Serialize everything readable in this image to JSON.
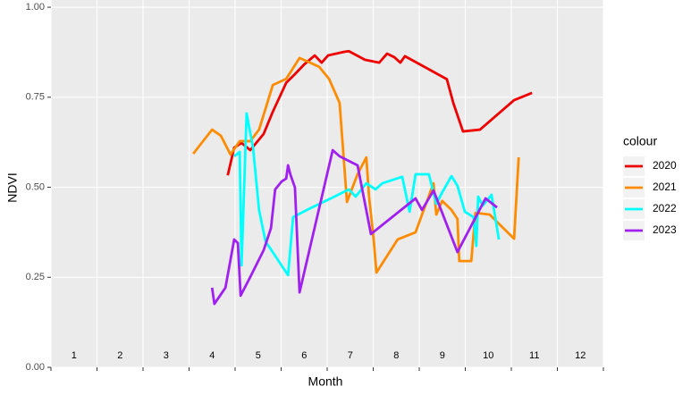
{
  "chart_data": {
    "type": "line",
    "x_label": "Month",
    "y_label": "NDVI",
    "legend_title": "colour",
    "legend_position": "right",
    "grid": true,
    "xlim": [
      1,
      13
    ],
    "xticks": [
      1,
      2,
      3,
      4,
      5,
      6,
      7,
      8,
      9,
      10,
      11,
      12,
      13
    ],
    "ylim": [
      0,
      1.02
    ],
    "yticks": [
      {
        "value": 0,
        "label": "0.00"
      },
      {
        "value": 0.25,
        "label": "0.25"
      },
      {
        "value": 0.5,
        "label": "0.50"
      },
      {
        "value": 0.75,
        "label": "0.75"
      },
      {
        "value": 1,
        "label": "1.00"
      }
    ],
    "annotations": [
      {
        "text": "1",
        "x": 1.5,
        "y": 0.017
      },
      {
        "text": "2",
        "x": 2.5,
        "y": 0.017
      },
      {
        "text": "3",
        "x": 3.5,
        "y": 0.017
      },
      {
        "text": "4",
        "x": 4.5,
        "y": 0.017
      },
      {
        "text": "5",
        "x": 5.5,
        "y": 0.017
      },
      {
        "text": "6",
        "x": 6.5,
        "y": 0.017
      },
      {
        "text": "7",
        "x": 7.5,
        "y": 0.017
      },
      {
        "text": "8",
        "x": 8.5,
        "y": 0.017
      },
      {
        "text": "9",
        "x": 9.5,
        "y": 0.017
      },
      {
        "text": "10",
        "x": 10.5,
        "y": 0.017
      },
      {
        "text": "11",
        "x": 11.5,
        "y": 0.017
      },
      {
        "text": "12",
        "x": 12.5,
        "y": 0.017
      }
    ],
    "series": [
      {
        "name": "2020",
        "color": "#ee0000",
        "x": [
          4.84,
          4.98,
          5.14,
          5.33,
          5.62,
          5.82,
          6.11,
          6.3,
          6.5,
          6.73,
          6.88,
          7.02,
          7.37,
          7.47,
          7.82,
          8.13,
          8.3,
          8.46,
          8.59,
          8.69,
          9.6,
          9.74,
          9.95,
          10.32,
          11.06,
          11.45
        ],
        "values": [
          0.533,
          0.61,
          0.623,
          0.603,
          0.648,
          0.71,
          0.79,
          0.814,
          0.841,
          0.866,
          0.846,
          0.866,
          0.876,
          0.878,
          0.854,
          0.846,
          0.871,
          0.861,
          0.846,
          0.864,
          0.8,
          0.734,
          0.655,
          0.66,
          0.742,
          0.762
        ]
      },
      {
        "name": "2021",
        "color": "#ff8c00",
        "x": [
          4.09,
          4.5,
          4.69,
          4.9,
          5.1,
          5.33,
          5.52,
          5.82,
          6.11,
          6.4,
          6.63,
          6.83,
          7.04,
          7.27,
          7.43,
          7.66,
          7.85,
          7.91,
          8.01,
          8.07,
          8.53,
          8.92,
          9.31,
          9.37,
          9.5,
          9.7,
          9.83,
          9.87,
          10.13,
          10.22,
          10.53,
          11.06,
          11.16
        ],
        "values": [
          0.593,
          0.66,
          0.643,
          0.591,
          0.628,
          0.628,
          0.66,
          0.784,
          0.801,
          0.859,
          0.846,
          0.834,
          0.801,
          0.734,
          0.459,
          0.536,
          0.583,
          0.474,
          0.355,
          0.263,
          0.355,
          0.375,
          0.511,
          0.424,
          0.462,
          0.437,
          0.412,
          0.295,
          0.295,
          0.429,
          0.424,
          0.357,
          0.583
        ]
      },
      {
        "name": "2022",
        "color": "#00ffff",
        "x": [
          4.98,
          5.1,
          5.14,
          5.25,
          5.39,
          5.52,
          5.66,
          6.15,
          6.26,
          6.59,
          7.08,
          7.47,
          7.62,
          7.85,
          8.05,
          8.2,
          8.63,
          8.79,
          8.92,
          9.21,
          9.37,
          9.5,
          9.7,
          9.83,
          9.99,
          10.18,
          10.24,
          10.28,
          10.38,
          10.57,
          10.73
        ],
        "values": [
          0.586,
          0.598,
          0.283,
          0.705,
          0.61,
          0.437,
          0.35,
          0.256,
          0.417,
          0.439,
          0.469,
          0.494,
          0.474,
          0.511,
          0.494,
          0.511,
          0.529,
          0.432,
          0.536,
          0.536,
          0.454,
          0.486,
          0.531,
          0.504,
          0.432,
          0.417,
          0.337,
          0.474,
          0.449,
          0.479,
          0.355
        ]
      },
      {
        "name": "2023",
        "color": "#a020f0",
        "x": [
          4.5,
          4.55,
          4.79,
          4.98,
          5.06,
          5.12,
          5.33,
          5.62,
          5.78,
          5.87,
          6.01,
          6.11,
          6.15,
          6.2,
          6.3,
          6.4,
          7.12,
          7.27,
          7.66,
          7.95,
          8.92,
          9.06,
          9.31,
          9.83,
          10.44,
          10.69
        ],
        "values": [
          0.221,
          0.176,
          0.221,
          0.355,
          0.345,
          0.199,
          0.251,
          0.325,
          0.387,
          0.494,
          0.516,
          0.524,
          0.561,
          0.536,
          0.499,
          0.208,
          0.603,
          0.586,
          0.561,
          0.37,
          0.469,
          0.437,
          0.491,
          0.32,
          0.469,
          0.444
        ]
      }
    ]
  }
}
